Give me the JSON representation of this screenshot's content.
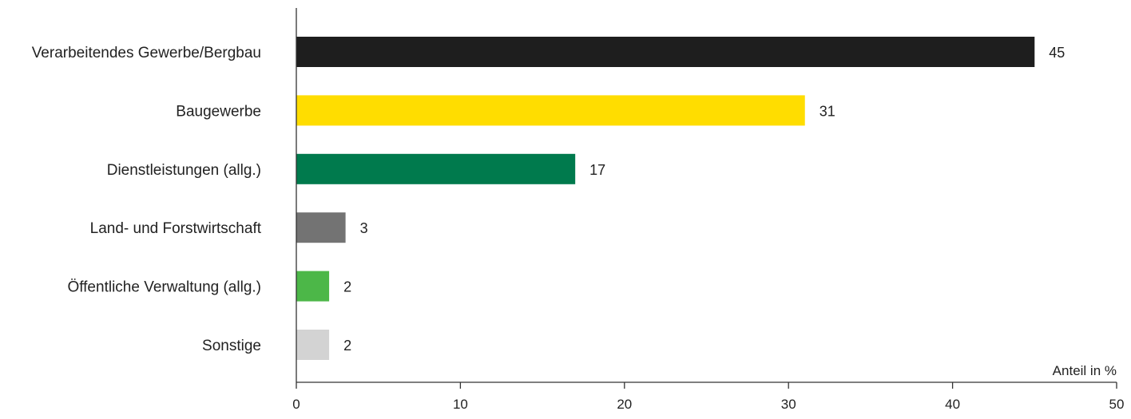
{
  "chart_data": {
    "type": "bar",
    "orientation": "horizontal",
    "categories": [
      "Verarbeitendes Gewerbe/Bergbau",
      "Baugewerbe",
      "Dienstleistungen (allg.)",
      "Land- und Forstwirtschaft",
      "Öffentliche Verwaltung (allg.)",
      "Sonstige"
    ],
    "values": [
      45,
      31,
      17,
      3,
      2,
      2
    ],
    "value_labels": [
      "45",
      "31",
      "17",
      "3",
      "2",
      "2"
    ],
    "colors": [
      "#1e1e1e",
      "#ffdd00",
      "#007a4d",
      "#737373",
      "#4cb748",
      "#d3d3d3"
    ],
    "xlabel": "Anteil in %",
    "ylabel": "",
    "xlim": [
      0,
      50
    ],
    "xticks": [
      0,
      10,
      20,
      30,
      40,
      50
    ],
    "xtick_labels": [
      "0",
      "10",
      "20",
      "30",
      "40",
      "50"
    ],
    "grid": false,
    "legend": "none"
  }
}
